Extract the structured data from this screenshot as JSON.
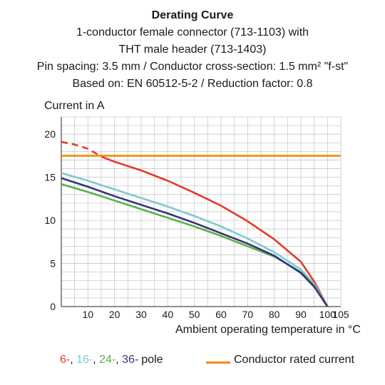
{
  "colors": {
    "pole6": "#e8392b",
    "pole16": "#7ec8d4",
    "pole24": "#59b245",
    "pole36": "#34337a",
    "rated": "#f28c00",
    "grid": "#c8c8c8"
  },
  "chart_data": {
    "type": "line",
    "title": "Derating Curve",
    "subtitle": [
      "1-conductor female connector (713-1103) with",
      "THT male header (713-1403)",
      "Pin spacing: 3.5 mm / Conductor cross-section: 1.5 mm² \"f-st\"",
      "Based on: EN 60512-5-2 / Reduction factor: 0.8"
    ],
    "ylabel": "Current in A",
    "xlabel": "Ambient operating temperature in °C",
    "xlim": [
      0,
      105
    ],
    "ylim": [
      0,
      22
    ],
    "xticks": [
      10,
      20,
      30,
      40,
      50,
      60,
      70,
      80,
      90,
      100,
      105
    ],
    "yticks": [
      0,
      5,
      10,
      15,
      20
    ],
    "grid": true,
    "series": [
      {
        "name": "6",
        "color_key": "pole6",
        "x": [
          0,
          5,
          10,
          15,
          20,
          30,
          40,
          50,
          60,
          70,
          80,
          90,
          95,
          100
        ],
        "y": [
          19.1,
          18.8,
          18.3,
          17.4,
          16.8,
          15.8,
          14.6,
          13.2,
          11.7,
          9.9,
          7.8,
          5.2,
          2.9,
          0
        ],
        "dashed_until_x": 15
      },
      {
        "name": "16",
        "color_key": "pole16",
        "x": [
          0,
          10,
          20,
          30,
          40,
          50,
          60,
          70,
          80,
          90,
          95,
          100
        ],
        "y": [
          15.5,
          14.6,
          13.6,
          12.6,
          11.6,
          10.5,
          9.3,
          7.9,
          6.3,
          4.3,
          2.6,
          0
        ]
      },
      {
        "name": "24",
        "color_key": "pole24",
        "x": [
          0,
          10,
          20,
          30,
          40,
          50,
          60,
          70,
          80,
          90,
          95,
          100
        ],
        "y": [
          14.2,
          13.3,
          12.3,
          11.3,
          10.3,
          9.3,
          8.2,
          7.0,
          5.8,
          4.0,
          2.4,
          0
        ]
      },
      {
        "name": "36",
        "color_key": "pole36",
        "x": [
          0,
          10,
          20,
          30,
          40,
          50,
          60,
          70,
          80,
          90,
          95,
          100
        ],
        "y": [
          14.9,
          13.9,
          12.8,
          11.8,
          10.8,
          9.7,
          8.5,
          7.3,
          5.9,
          3.9,
          2.3,
          0
        ]
      },
      {
        "name": "Conductor rated current",
        "color_key": "rated",
        "x": [
          0,
          110
        ],
        "y": [
          17.5,
          17.5
        ]
      }
    ],
    "legend": {
      "poles": [
        {
          "text": "6-",
          "color_key": "pole6"
        },
        {
          "text": ", ",
          "color_key": ""
        },
        {
          "text": "16-",
          "color_key": "pole16"
        },
        {
          "text": ", ",
          "color_key": ""
        },
        {
          "text": "24-",
          "color_key": "pole24"
        },
        {
          "text": ", ",
          "color_key": ""
        },
        {
          "text": "36-",
          "color_key": "pole36"
        },
        {
          "text": "pole",
          "color_key": ""
        }
      ],
      "rated_label": "Conductor rated current"
    }
  }
}
